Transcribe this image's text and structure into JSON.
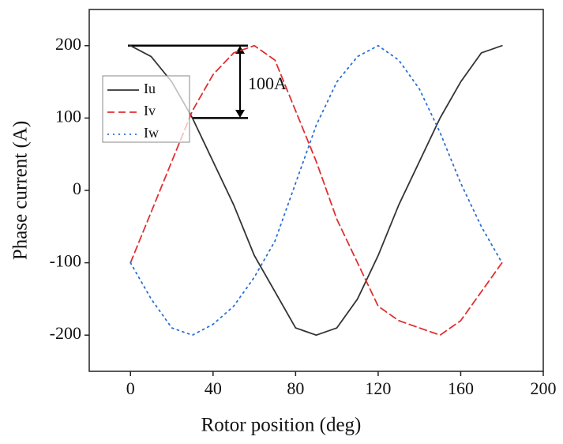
{
  "chart_data": {
    "type": "line",
    "xlabel": "Rotor position (deg)",
    "ylabel": "Phase current (A)",
    "annotation": "100A",
    "x": [
      0,
      10,
      20,
      30,
      40,
      50,
      60,
      70,
      80,
      90,
      100,
      110,
      120,
      130,
      140,
      150,
      160,
      170,
      180
    ],
    "series": [
      {
        "name": "Iu",
        "color": "#333333",
        "dash": "solid",
        "values": [
          200,
          185,
          150,
          100,
          40,
          -20,
          -90,
          -140,
          -190,
          -200,
          -190,
          -150,
          -90,
          -20,
          40,
          100,
          150,
          190,
          200
        ]
      },
      {
        "name": "Iv",
        "color": "#e03030",
        "dash": "dashed",
        "values": [
          -100,
          -30,
          40,
          110,
          160,
          190,
          200,
          180,
          110,
          40,
          -40,
          -100,
          -160,
          -180,
          -190,
          -200,
          -180,
          -140,
          -100
        ]
      },
      {
        "name": "Iw",
        "color": "#2a6fd6",
        "dash": "dotted",
        "values": [
          -100,
          -150,
          -190,
          -200,
          -185,
          -160,
          -120,
          -70,
          10,
          90,
          150,
          185,
          200,
          180,
          140,
          80,
          10,
          -50,
          -100
        ]
      }
    ],
    "xlim": [
      -20,
      200
    ],
    "xticks": [
      0,
      40,
      80,
      120,
      160,
      200
    ],
    "ylim": [
      -250,
      250
    ],
    "yticks": [
      -200,
      -100,
      0,
      100,
      200
    ],
    "legend": "upper-left"
  }
}
